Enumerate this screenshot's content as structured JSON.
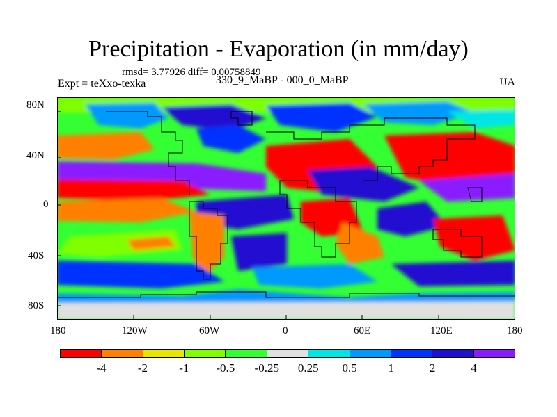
{
  "figure": {
    "title": "Precipitation - Evaporation (in mm/day)",
    "stats": "rmsd= 3.77926 diff= 0.00758849",
    "experiment": "Expt = teXxo-texka",
    "comparison": "330_9_MaBP - 000_0_MaBP",
    "season": "JJA"
  },
  "axes": {
    "y_ticks": [
      "80N",
      "40N",
      "0",
      "40S",
      "80S"
    ],
    "x_ticks": [
      "180",
      "120W",
      "60W",
      "0",
      "60E",
      "120E",
      "180"
    ]
  },
  "colorbar": {
    "colors": [
      "#ff0000",
      "#ff8000",
      "#e6e600",
      "#80ff00",
      "#33ff33",
      "#e0e0e0",
      "#00e6e6",
      "#0099ff",
      "#0033ff",
      "#2010d0",
      "#8a1aff"
    ],
    "labels": [
      "-4",
      "-2",
      "-1",
      "-0.5",
      "-0.25",
      "0.25",
      "0.5",
      "1",
      "2",
      "4"
    ]
  }
}
